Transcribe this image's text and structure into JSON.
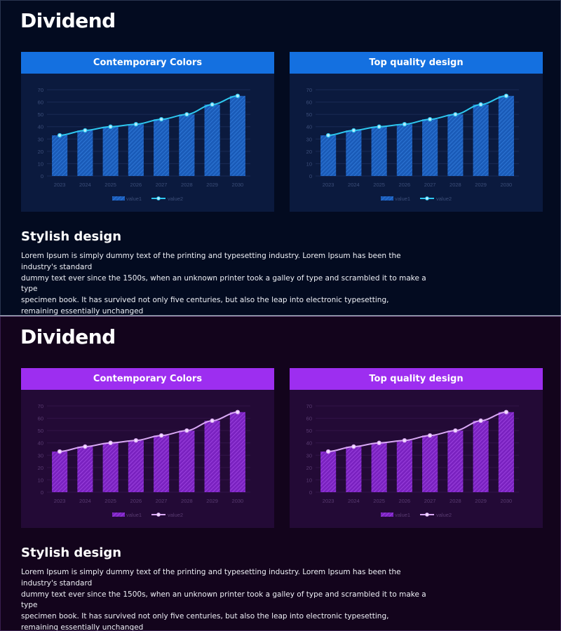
{
  "slides": [
    {
      "title": "Dividend",
      "section_title": "Stylish design",
      "body": "Lorem Ipsum is simply dummy text of the printing and typesetting industry. Lorem Ipsum has been the industry's standard\ndummy text ever since the 1500s, when an unknown printer took a galley of type and scrambled it to make a type\nspecimen book. It has survived not only five centuries, but also the leap into electronic typesetting,\nremaining essentially unchanged",
      "colors": {
        "background": "#030b20",
        "header": "#1470e0",
        "panel": "#0b1a3e",
        "bar": "#1a5bb8",
        "bar_hatch": "#3580e0",
        "line": "#2ec8f0",
        "marker_fill": "#b8ecff",
        "axis_text": "#3d4f7a",
        "grid": "#1a2a55",
        "legend_text": "#3d4f7a"
      }
    },
    {
      "title": "Dividend",
      "section_title": "Stylish design",
      "body": "Lorem Ipsum is simply dummy text of the printing and typesetting industry. Lorem Ipsum has been the industry's standard\ndummy text ever since the 1500s, when an unknown printer took a galley of type and scrambled it to make a type\nspecimen book. It has survived not only five centuries, but also the leap into electronic typesetting,\nremaining essentially unchanged",
      "colors": {
        "background": "#13041c",
        "header": "#9d2ef0",
        "panel": "#230a36",
        "bar": "#7a22c0",
        "bar_hatch": "#a64ce8",
        "line": "#d9a8f5",
        "marker_fill": "#f3e0ff",
        "axis_text": "#5a3c72",
        "grid": "#321448",
        "legend_text": "#5a3c72"
      }
    }
  ],
  "chart_data": [
    {
      "slide": 0,
      "type": "bar",
      "title": "Contemporary Colors",
      "categories": [
        "2023",
        "2024",
        "2025",
        "2026",
        "2027",
        "2028",
        "2029",
        "2030"
      ],
      "series": [
        {
          "name": "value1",
          "type": "bar",
          "values": [
            33,
            37,
            40,
            42,
            46,
            50,
            58,
            65
          ]
        },
        {
          "name": "value2",
          "type": "line",
          "values": [
            33,
            37,
            40,
            42,
            46,
            50,
            58,
            65
          ]
        }
      ],
      "yticks": [
        "0",
        "10",
        "20",
        "30",
        "40",
        "50",
        "60",
        "70"
      ],
      "ylim": [
        0,
        70
      ],
      "legend": "bottom",
      "grid": true
    },
    {
      "slide": 0,
      "type": "bar",
      "title": "Top quality design",
      "categories": [
        "2023",
        "2024",
        "2025",
        "2026",
        "2027",
        "2028",
        "2029",
        "2030"
      ],
      "series": [
        {
          "name": "value1",
          "type": "bar",
          "values": [
            33,
            37,
            40,
            42,
            46,
            50,
            58,
            65
          ]
        },
        {
          "name": "value2",
          "type": "line",
          "values": [
            33,
            37,
            40,
            42,
            46,
            50,
            58,
            65
          ]
        }
      ],
      "yticks": [
        "0",
        "10",
        "20",
        "30",
        "40",
        "50",
        "60",
        "70"
      ],
      "ylim": [
        0,
        70
      ],
      "legend": "bottom",
      "grid": true
    },
    {
      "slide": 1,
      "type": "bar",
      "title": "Contemporary Colors",
      "categories": [
        "2023",
        "2024",
        "2025",
        "2026",
        "2027",
        "2028",
        "2029",
        "2030"
      ],
      "series": [
        {
          "name": "value1",
          "type": "bar",
          "values": [
            33,
            37,
            40,
            42,
            46,
            50,
            58,
            65
          ]
        },
        {
          "name": "value2",
          "type": "line",
          "values": [
            33,
            37,
            40,
            42,
            46,
            50,
            58,
            65
          ]
        }
      ],
      "yticks": [
        "0",
        "10",
        "20",
        "30",
        "40",
        "50",
        "60",
        "70"
      ],
      "ylim": [
        0,
        70
      ],
      "legend": "bottom",
      "grid": true
    },
    {
      "slide": 1,
      "type": "bar",
      "title": "Top quality design",
      "categories": [
        "2023",
        "2024",
        "2025",
        "2026",
        "2027",
        "2028",
        "2029",
        "2030"
      ],
      "series": [
        {
          "name": "value1",
          "type": "bar",
          "values": [
            33,
            37,
            40,
            42,
            46,
            50,
            58,
            65
          ]
        },
        {
          "name": "value2",
          "type": "line",
          "values": [
            33,
            37,
            40,
            42,
            46,
            50,
            58,
            65
          ]
        }
      ],
      "yticks": [
        "0",
        "10",
        "20",
        "30",
        "40",
        "50",
        "60",
        "70"
      ],
      "ylim": [
        0,
        70
      ],
      "legend": "bottom",
      "grid": true
    }
  ]
}
